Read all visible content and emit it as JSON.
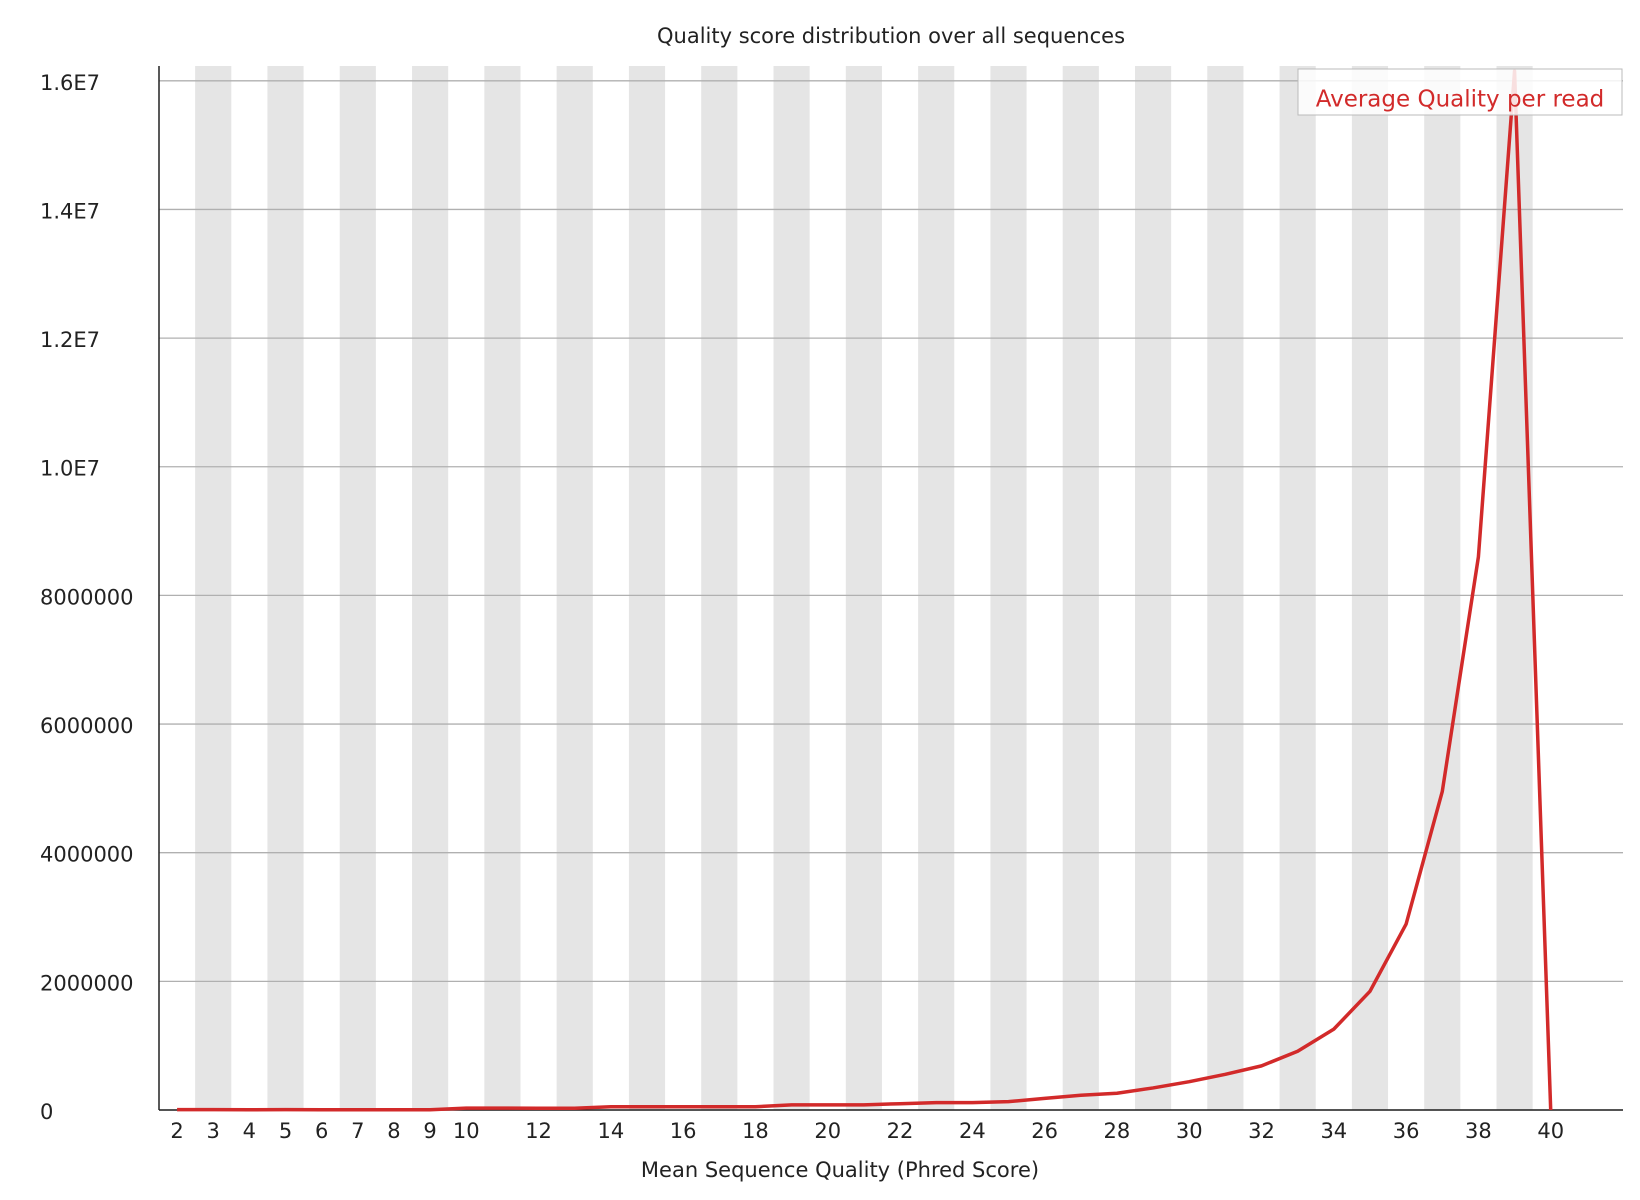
{
  "chart_data": {
    "type": "line",
    "title": "Quality score distribution over all sequences",
    "x_label": "Mean Sequence Quality (Phred Score)",
    "categories": [
      "2",
      "3",
      "4",
      "5",
      "6",
      "7",
      "8",
      "9",
      "10",
      null,
      "12",
      null,
      "14",
      null,
      "16",
      null,
      "18",
      null,
      "20",
      null,
      "22",
      null,
      "24",
      null,
      "26",
      null,
      "28",
      null,
      "30",
      null,
      "32",
      null,
      "34",
      null,
      "36",
      null,
      "38",
      null,
      "40"
    ],
    "series": [
      {
        "name": "Average Quality per read",
        "color": "#d22a2a",
        "values": [
          5000,
          5000,
          4000,
          5000,
          4000,
          4000,
          3000,
          4000,
          30000,
          30000,
          28000,
          28000,
          50000,
          50000,
          50000,
          50000,
          50000,
          80000,
          80000,
          80000,
          98000,
          114000,
          114000,
          130000,
          180000,
          229000,
          261000,
          343000,
          440000,
          555000,
          686000,
          914000,
          1257000,
          1845000,
          2890000,
          4950000,
          8600000,
          16150000,
          0
        ]
      }
    ],
    "ylim": [
      0,
      16230000
    ],
    "yticks": [
      0,
      2000000,
      4000000,
      6000000,
      8000000,
      {
        "value": 10000000,
        "label": "1.0E7"
      },
      {
        "value": 12000000,
        "label": "1.2E7"
      },
      {
        "value": 14000000,
        "label": "1.4E7"
      },
      {
        "value": 16000000,
        "label": "1.6E7"
      }
    ],
    "grid": true,
    "stripes": true,
    "legend": "top-right"
  }
}
